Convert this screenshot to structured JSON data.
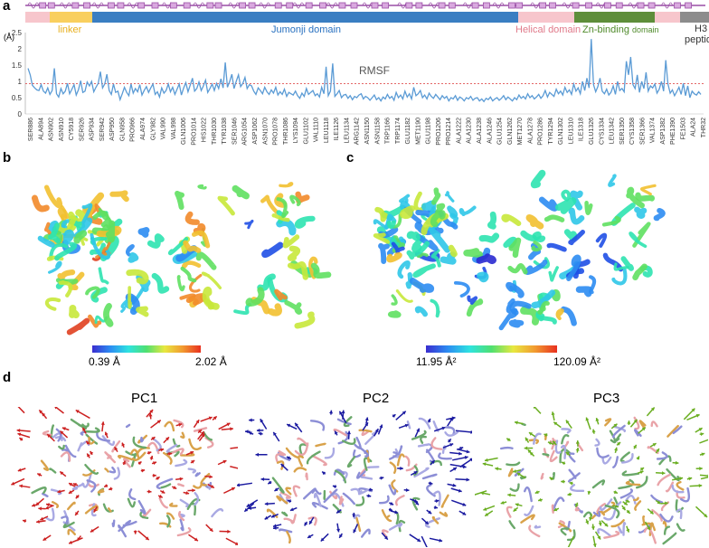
{
  "panels": {
    "a": "a",
    "b": "b",
    "c": "c",
    "d": "d"
  },
  "chart_data": {
    "type": "line",
    "ylabel": "(Å)",
    "yticks": [
      "0",
      "0.5",
      "1",
      "1.5",
      "2",
      "2.5"
    ],
    "ylim": [
      0,
      2.5
    ],
    "series_label": "RMSF",
    "threshold": 0.93,
    "x_tick_labels": [
      "SER886",
      "ALA894",
      "ASN902",
      "ASN910",
      "CY5918",
      "SER926",
      "ASP934",
      "SER942",
      "ASP950",
      "GLN958",
      "PRO966",
      "ALA974",
      "GLY982",
      "VAL990",
      "VAL998",
      "GLN1006",
      "PRO1014",
      "HIS1022",
      "THR1030",
      "TYR1038",
      "SER1046",
      "ARG1054",
      "ASP1062",
      "ASN1070",
      "PRO1078",
      "THR1086",
      "LYS1094",
      "GLU1102",
      "VAL1110",
      "LEU1118",
      "ILE1126",
      "LEU1134",
      "ARG1142",
      "ASN1150",
      "ASN1158",
      "TRP1166",
      "TRP1174",
      "GLU1182",
      "MET1190",
      "GLU1198",
      "PRO1206",
      "PRO1214",
      "ALA1222",
      "ALA1230",
      "ALA1238",
      "ALA1246",
      "GLU1254",
      "GLN1262",
      "MET1270",
      "ALA1278",
      "PRO1286",
      "TYR1294",
      "GLN1302",
      "LEU1310",
      "ILE1318",
      "GLU1326",
      "CYS1334",
      "LEU1342",
      "SER1350",
      "CYS1358",
      "SER1366",
      "VAL1374",
      "ASP1382",
      "PHE1390",
      "FE1503",
      "ALA24",
      "THR32"
    ],
    "values": [
      1.4,
      1.2,
      0.88,
      0.8,
      0.74,
      0.72,
      0.9,
      0.7,
      0.64,
      0.8,
      0.6,
      0.72,
      1.4,
      0.62,
      0.52,
      0.78,
      0.62,
      0.7,
      0.94,
      0.62,
      0.76,
      0.9,
      0.58,
      0.74,
      1.02,
      0.66,
      0.7,
      0.98,
      0.86,
      1.0,
      0.68,
      0.82,
      0.94,
      1.3,
      0.8,
      0.92,
      1.22,
      0.72,
      0.6,
      0.92,
      0.66,
      0.7,
      0.44,
      0.62,
      0.82,
      0.66,
      0.56,
      0.92,
      0.64,
      0.78,
      0.68,
      0.9,
      0.58,
      0.72,
      0.84,
      0.66,
      0.8,
      0.92,
      0.6,
      0.68,
      0.52,
      0.8,
      0.64,
      0.72,
      0.92,
      0.68,
      0.82,
      0.6,
      0.76,
      0.92,
      0.58,
      0.8,
      0.96,
      0.68,
      0.88,
      1.1,
      0.7,
      0.78,
      0.98,
      0.72,
      0.86,
      1.04,
      0.66,
      0.78,
      0.92,
      0.72,
      0.94,
      0.78,
      1.08,
      0.8,
      1.58,
      0.82,
      1.0,
      1.22,
      0.78,
      1.0,
      1.2,
      0.84,
      0.94,
      1.12,
      0.78,
      0.9,
      0.86,
      0.7,
      0.6,
      0.8,
      0.72,
      0.62,
      0.82,
      0.68,
      0.6,
      0.74,
      0.64,
      0.82,
      0.58,
      0.68,
      0.6,
      0.76,
      0.54,
      0.66,
      0.62,
      0.58,
      0.7,
      0.56,
      0.48,
      0.64,
      0.54,
      0.78,
      0.6,
      0.66,
      0.72,
      0.56,
      0.62,
      0.52,
      0.82,
      0.62,
      1.45,
      0.56,
      0.7,
      1.55,
      0.54,
      0.62,
      0.72,
      0.5,
      0.58,
      0.6,
      0.48,
      0.56,
      0.44,
      0.54,
      0.5,
      0.58,
      0.62,
      0.46,
      0.54,
      0.5,
      0.42,
      0.5,
      0.58,
      0.44,
      0.5,
      0.4,
      0.52,
      0.46,
      0.6,
      0.48,
      0.54,
      0.42,
      0.66,
      0.5,
      0.58,
      0.46,
      0.7,
      0.52,
      0.62,
      0.46,
      0.82,
      0.56,
      0.62,
      0.72,
      0.5,
      0.58,
      0.46,
      0.64,
      0.54,
      0.48,
      0.6,
      0.52,
      0.44,
      0.56,
      0.48,
      0.54,
      0.4,
      0.5,
      0.46,
      0.56,
      0.42,
      0.52,
      0.48,
      0.4,
      0.5,
      0.46,
      0.54,
      0.42,
      0.48,
      0.5,
      0.4,
      0.46,
      0.38,
      0.48,
      0.44,
      0.52,
      0.4,
      0.46,
      0.5,
      0.42,
      0.48,
      0.56,
      0.44,
      0.52,
      0.46,
      0.4,
      0.5,
      0.44,
      0.58,
      0.48,
      0.54,
      0.46,
      0.62,
      0.5,
      0.56,
      0.46,
      0.52,
      0.6,
      0.48,
      0.56,
      0.72,
      0.52,
      0.66,
      0.6,
      0.54,
      0.76,
      0.62,
      0.7,
      0.58,
      0.82,
      0.66,
      0.74,
      0.6,
      0.92,
      0.7,
      0.8,
      0.62,
      1.0,
      0.72,
      1.1,
      0.8,
      2.3,
      0.9,
      0.68,
      0.84,
      1.1,
      0.7,
      0.62,
      0.76,
      0.58,
      0.66,
      0.86,
      0.6,
      1.0,
      0.72,
      0.78,
      0.68,
      1.62,
      1.2,
      1.75,
      0.9,
      0.78,
      1.2,
      0.66,
      1.0,
      0.78,
      1.28,
      0.7,
      0.86,
      0.8,
      0.92,
      0.64,
      0.76,
      1.0,
      0.7,
      1.65,
      0.92,
      0.64,
      0.74,
      0.56,
      0.68,
      0.82,
      0.6,
      0.94,
      0.56,
      0.86,
      0.5,
      0.7,
      0.62,
      0.58,
      0.68,
      0.6
    ]
  },
  "domains": [
    {
      "name": "",
      "color": "#f7c6cc"
    },
    {
      "name": "linker",
      "color": "#f9cf5e",
      "text_color": "#e8b020"
    },
    {
      "name": "Jumonji domain",
      "color": "#3a7ec2",
      "text_color": "#2a72c0"
    },
    {
      "name": "Helical domain",
      "color": "#f7c6cc",
      "text_color": "#e07a8a"
    },
    {
      "name": "Zn-binding",
      "small": "domain",
      "color": "#5e8e3a",
      "text_color": "#4f8a2a"
    },
    {
      "name": "",
      "color": "#f7c6cc"
    },
    {
      "name": "H3",
      "name2": "peptide",
      "color": "#8c8c8c",
      "text_color": "#333333"
    }
  ],
  "scale_b": {
    "min": "0.39 Å",
    "max": "2.02 Å"
  },
  "scale_c": {
    "min": "11.95 Å²",
    "max": "120.09 Å²"
  },
  "pcs": [
    {
      "title": "PC1",
      "color": "#cc2020"
    },
    {
      "title": "PC2",
      "color": "#1a1aa0"
    },
    {
      "title": "PC3",
      "color": "#6aae20"
    }
  ],
  "colors": {
    "rmsf_line": "#5b9bd5",
    "threshold_line": "#e05050",
    "secondary": "#9a4fa6"
  }
}
